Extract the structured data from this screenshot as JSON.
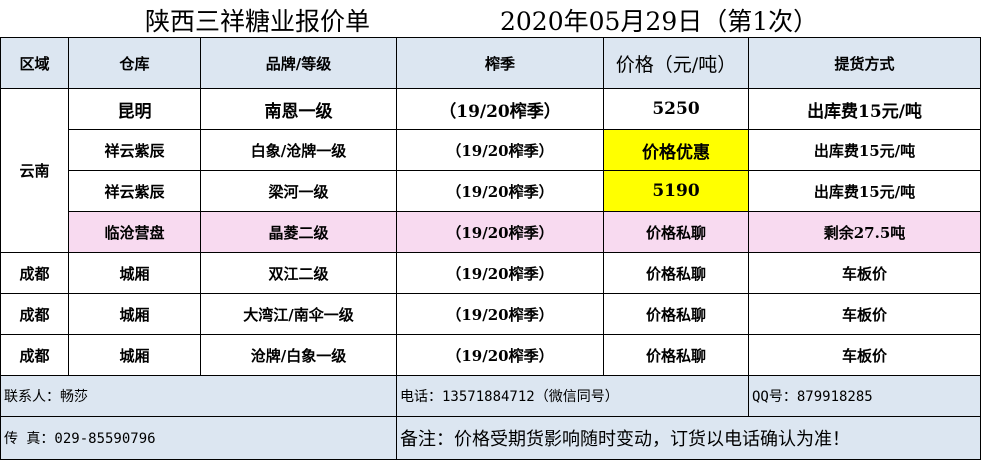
{
  "title": {
    "company": "陕西三祥糖业报价单",
    "date": "2020年05月29日（第1次）"
  },
  "headers": [
    "区域",
    "仓库",
    "品牌/等级",
    "榨季",
    "价格（元/吨）",
    "提货方式"
  ],
  "region_yunnan": "云南",
  "rows": [
    {
      "warehouse": "昆明",
      "brand": "南恩一级",
      "season": "（19/20榨季）",
      "price": "5250",
      "delivery": "出库费15元/吨"
    },
    {
      "warehouse": "祥云紫辰",
      "brand": "白象/沧牌一级",
      "season": "（19/20榨季）",
      "price": "价格优惠",
      "delivery": "出库费15元/吨"
    },
    {
      "warehouse": "祥云紫辰",
      "brand": "梁河一级",
      "season": "（19/20榨季）",
      "price": "5190",
      "delivery": "出库费15元/吨"
    },
    {
      "warehouse": "临沧营盘",
      "brand": "晶菱二级",
      "season": "（19/20榨季）",
      "price": "价格私聊",
      "delivery": "剩余27.5吨"
    },
    {
      "region": "成都",
      "warehouse": "城厢",
      "brand": "双江二级",
      "season": "（19/20榨季）",
      "price": "价格私聊",
      "delivery": "车板价"
    },
    {
      "region": "成都",
      "warehouse": "城厢",
      "brand": "大湾江/南伞一级",
      "season": "（19/20榨季）",
      "price": "价格私聊",
      "delivery": "车板价"
    },
    {
      "region": "成都",
      "warehouse": "城厢",
      "brand": "沧牌/白象一级",
      "season": "（19/20榨季）",
      "price": "价格私聊",
      "delivery": "车板价"
    }
  ],
  "footer": {
    "contact": "联系人：畅莎",
    "phone": "电话：13571884712（微信同号）",
    "qq": "QQ号：879918285",
    "fax": "传  真：029-85590796",
    "note": "备注：价格受期货影响随时变动，订货以电话确认为准！"
  },
  "colors": {
    "header_bg": "#dce6f1",
    "highlight": "#ffff00",
    "pink_row": "#f8daf0"
  }
}
